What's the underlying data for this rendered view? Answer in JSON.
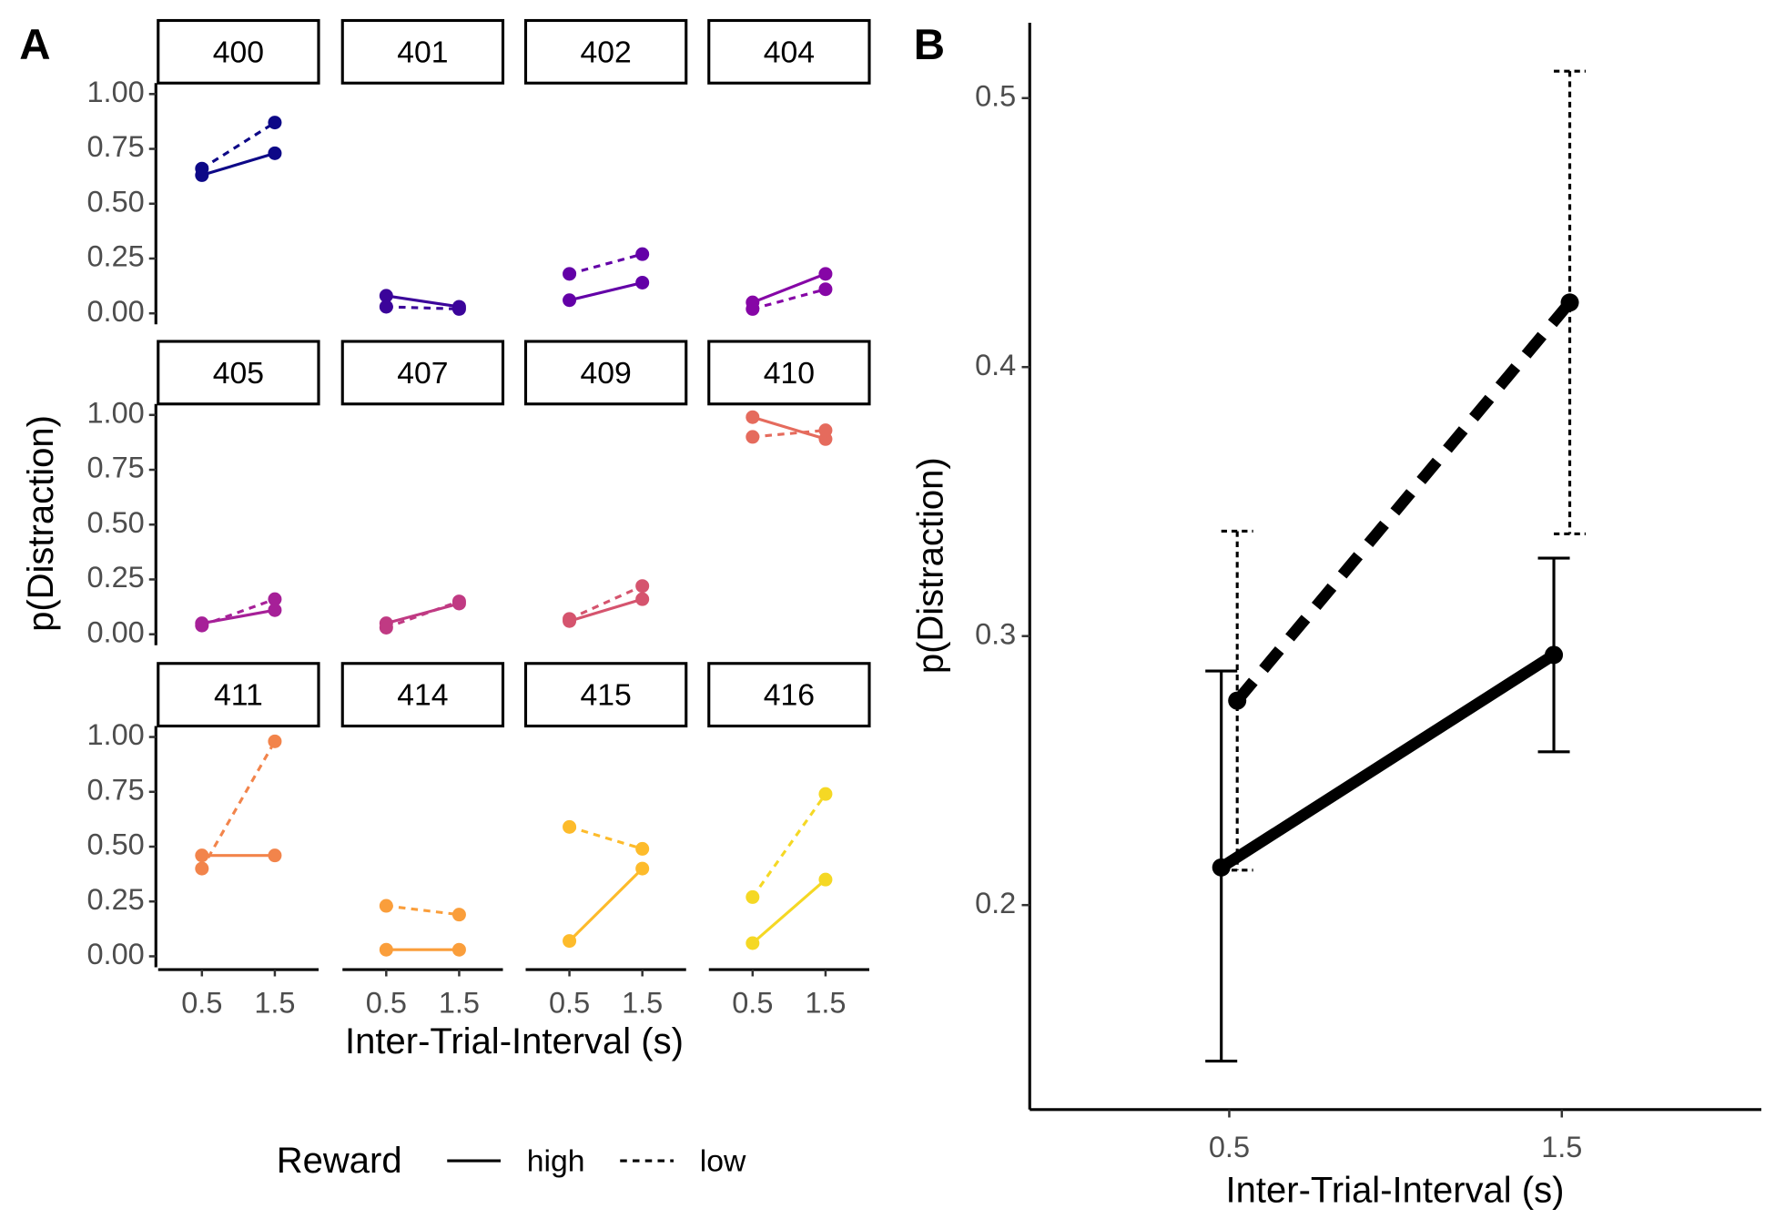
{
  "chart_data": [
    {
      "type": "facet-line",
      "panel_label": "A",
      "y_label": "p(Distraction)",
      "x_label": "Inter-Trial-Interval (s)",
      "categories": [
        "0.5",
        "1.5"
      ],
      "ylim": [
        -0.05,
        1.05
      ],
      "yticks": [
        {
          "value": 0,
          "label": "0.00"
        },
        {
          "value": 0.25,
          "label": "0.25"
        },
        {
          "value": 0.5,
          "label": "0.50"
        },
        {
          "value": 0.75,
          "label": "0.75"
        },
        {
          "value": 1,
          "label": "1.00"
        }
      ],
      "legend_title": "Reward",
      "series": [
        {
          "name": "high",
          "dash": "solid"
        },
        {
          "name": "low",
          "dash": "dashed"
        }
      ],
      "facets": [
        {
          "label": "400",
          "color": "#0d0887",
          "values": [
            [
              0.63,
              0.73
            ],
            [
              0.66,
              0.87
            ]
          ]
        },
        {
          "label": "401",
          "color": "#3b049a",
          "values": [
            [
              0.08,
              0.03
            ],
            [
              0.03,
              0.02
            ]
          ]
        },
        {
          "label": "402",
          "color": "#6300a7",
          "values": [
            [
              0.06,
              0.14
            ],
            [
              0.18,
              0.27
            ]
          ]
        },
        {
          "label": "404",
          "color": "#8606a6",
          "values": [
            [
              0.05,
              0.18
            ],
            [
              0.02,
              0.11
            ]
          ]
        },
        {
          "label": "405",
          "color": "#a62098",
          "values": [
            [
              0.05,
              0.11
            ],
            [
              0.04,
              0.16
            ]
          ]
        },
        {
          "label": "407",
          "color": "#c03a83",
          "values": [
            [
              0.05,
              0.14
            ],
            [
              0.03,
              0.15
            ]
          ]
        },
        {
          "label": "409",
          "color": "#d5546e",
          "values": [
            [
              0.06,
              0.16
            ],
            [
              0.07,
              0.22
            ]
          ]
        },
        {
          "label": "410",
          "color": "#e56b5d",
          "values": [
            [
              0.99,
              0.89
            ],
            [
              0.9,
              0.93
            ]
          ]
        },
        {
          "label": "411",
          "color": "#f2844b",
          "values": [
            [
              0.46,
              0.46
            ],
            [
              0.4,
              0.98
            ]
          ]
        },
        {
          "label": "414",
          "color": "#fa9e3b",
          "values": [
            [
              0.03,
              0.03
            ],
            [
              0.23,
              0.19
            ]
          ]
        },
        {
          "label": "415",
          "color": "#fdbb2b",
          "values": [
            [
              0.07,
              0.4
            ],
            [
              0.59,
              0.49
            ]
          ]
        },
        {
          "label": "416",
          "color": "#f5d824",
          "values": [
            [
              0.06,
              0.35
            ],
            [
              0.27,
              0.74
            ]
          ]
        }
      ]
    },
    {
      "type": "errorbar-line",
      "panel_label": "B",
      "y_label": "p(Distraction)",
      "x_label": "Inter-Trial-Interval (s)",
      "categories": [
        "0.5",
        "1.5"
      ],
      "ylim": [
        0.124,
        0.528
      ],
      "yticks": [
        0.2,
        0.3,
        0.4,
        0.5
      ],
      "color": "#000000",
      "series": [
        {
          "name": "high",
          "dash": "solid",
          "values": [
            0.214,
            0.293
          ],
          "upper": [
            0.287,
            0.329
          ],
          "lower": [
            0.142,
            0.257
          ]
        },
        {
          "name": "low",
          "dash": "dashed",
          "values": [
            0.276,
            0.424
          ],
          "upper": [
            0.339,
            0.51
          ],
          "lower": [
            0.213,
            0.338
          ]
        }
      ]
    }
  ]
}
